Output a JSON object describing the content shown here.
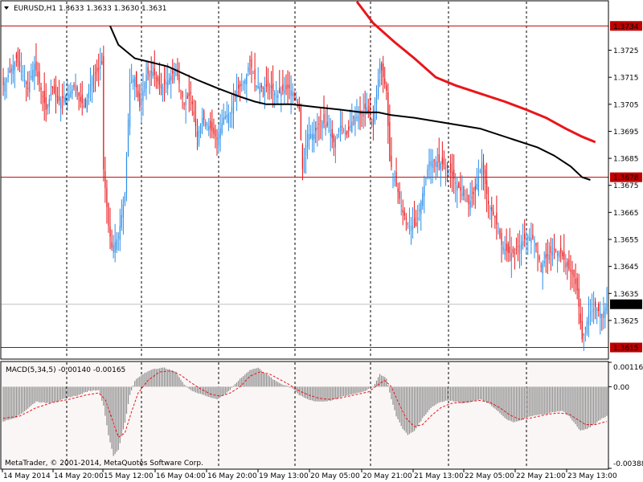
{
  "window": {
    "symbol_header": "EURUSD,H1  1.3633 1.3633 1.3630 1.3631",
    "copyright": "MetaTrader, © 2001-2014, MetaQuotes Software Corp."
  },
  "colors": {
    "background": "#ffffff",
    "grid": "#000000",
    "bull": "#2b8ee8",
    "bear": "#e8161a",
    "ma_slow": "#e8161a",
    "ma_fast": "#000000",
    "level_line": "#c00000",
    "macd_hist": "#8c8c8c",
    "macd_signal": "#e8161a",
    "panel_bg": "#fbf6f6"
  },
  "chart_data": [
    {
      "type": "candlestick",
      "symbol": "EURUSD",
      "timeframe": "H1",
      "ohlc_current": {
        "open": 1.3633,
        "high": 1.3633,
        "low": 1.363,
        "close": 1.3631
      },
      "ylim": [
        1.3611,
        1.3743
      ],
      "y_ticks": [
        "1.3725",
        "1.3715",
        "1.3705",
        "1.3695",
        "1.3685",
        "1.3675",
        "1.3665",
        "1.3655",
        "1.3645",
        "1.3635",
        "1.3625"
      ],
      "y_tick_values": [
        1.3725,
        1.3715,
        1.3705,
        1.3695,
        1.3685,
        1.3675,
        1.3665,
        1.3655,
        1.3645,
        1.3635,
        1.3625
      ],
      "x_tick_labels": [
        "14 May 2014",
        "14 May 20:00",
        "15 May 12:00",
        "16 May 04:00",
        "16 May 20:00",
        "19 May 13:00",
        "20 May 05:00",
        "20 May 21:00",
        "21 May 13:00",
        "22 May 05:00",
        "22 May 21:00",
        "23 May 13:00"
      ],
      "levels": [
        {
          "value": 1.3734,
          "label": "1.3734"
        },
        {
          "value": 1.3678,
          "label": "1.3678"
        },
        {
          "value": 1.3615,
          "label": "1.3615"
        }
      ],
      "current_price": {
        "value": 1.3631,
        "label": "1.3631"
      },
      "close_path": [
        [
          0,
          1.3712
        ],
        [
          8,
          1.3722
        ],
        [
          15,
          1.3711
        ],
        [
          19,
          1.372
        ],
        [
          26,
          1.3703
        ],
        [
          30,
          1.3711
        ],
        [
          33,
          1.3706
        ],
        [
          40,
          1.3709
        ],
        [
          44,
          1.3712
        ],
        [
          47,
          1.3706
        ],
        [
          50,
          1.3704
        ],
        [
          54,
          1.3715
        ],
        [
          57,
          1.3717
        ],
        [
          60,
          1.372
        ],
        [
          61,
          1.3681
        ],
        [
          64,
          1.366
        ],
        [
          66,
          1.3652
        ],
        [
          70,
          1.3656
        ],
        [
          74,
          1.3672
        ],
        [
          77,
          1.3713
        ],
        [
          80,
          1.3715
        ],
        [
          83,
          1.3704
        ],
        [
          87,
          1.3716
        ],
        [
          91,
          1.3717
        ],
        [
          96,
          1.3711
        ],
        [
          100,
          1.3714
        ],
        [
          105,
          1.3718
        ],
        [
          110,
          1.3705
        ],
        [
          114,
          1.3709
        ],
        [
          118,
          1.3693
        ],
        [
          121,
          1.37
        ],
        [
          125,
          1.3697
        ],
        [
          130,
          1.3692
        ],
        [
          134,
          1.37
        ],
        [
          138,
          1.3702
        ],
        [
          142,
          1.371
        ],
        [
          147,
          1.3714
        ],
        [
          150,
          1.3721
        ],
        [
          154,
          1.3712
        ],
        [
          158,
          1.3711
        ],
        [
          162,
          1.3712
        ],
        [
          166,
          1.3708
        ],
        [
          170,
          1.371
        ],
        [
          174,
          1.3711
        ],
        [
          178,
          1.3708
        ],
        [
          180,
          1.3703
        ],
        [
          182,
          1.3681
        ],
        [
          185,
          1.3694
        ],
        [
          189,
          1.3694
        ],
        [
          193,
          1.3699
        ],
        [
          197,
          1.3697
        ],
        [
          201,
          1.3691
        ],
        [
          205,
          1.3697
        ],
        [
          209,
          1.3694
        ],
        [
          213,
          1.37
        ],
        [
          217,
          1.3701
        ],
        [
          221,
          1.3704
        ],
        [
          225,
          1.3697
        ],
        [
          229,
          1.372
        ],
        [
          233,
          1.371
        ],
        [
          235,
          1.3684
        ],
        [
          239,
          1.3675
        ],
        [
          243,
          1.3665
        ],
        [
          247,
          1.366
        ],
        [
          251,
          1.366
        ],
        [
          255,
          1.3672
        ],
        [
          259,
          1.3684
        ],
        [
          263,
          1.3684
        ],
        [
          267,
          1.3683
        ],
        [
          271,
          1.3681
        ],
        [
          275,
          1.3676
        ],
        [
          279,
          1.3672
        ],
        [
          283,
          1.3668
        ],
        [
          287,
          1.3673
        ],
        [
          291,
          1.3683
        ],
        [
          295,
          1.3668
        ],
        [
          299,
          1.3663
        ],
        [
          303,
          1.3653
        ],
        [
          307,
          1.365
        ],
        [
          311,
          1.365
        ],
        [
          315,
          1.3654
        ],
        [
          319,
          1.3656
        ],
        [
          323,
          1.3655
        ],
        [
          327,
          1.3645
        ],
        [
          331,
          1.3649
        ],
        [
          335,
          1.3651
        ],
        [
          339,
          1.365
        ],
        [
          343,
          1.3645
        ],
        [
          347,
          1.3641
        ],
        [
          349,
          1.3636
        ],
        [
          352,
          1.3618
        ],
        [
          356,
          1.3627
        ],
        [
          360,
          1.363
        ],
        [
          364,
          1.3627
        ],
        [
          367,
          1.3631
        ]
      ],
      "ma_fast": [
        [
          65,
          1.3734
        ],
        [
          70,
          1.3727
        ],
        [
          80,
          1.3722
        ],
        [
          100,
          1.3719
        ],
        [
          118,
          1.3714
        ],
        [
          130,
          1.3711
        ],
        [
          143,
          1.3708
        ],
        [
          153,
          1.3706
        ],
        [
          160,
          1.3705
        ],
        [
          175,
          1.3705
        ],
        [
          190,
          1.3704
        ],
        [
          205,
          1.3703
        ],
        [
          218,
          1.3702
        ],
        [
          228,
          1.3702
        ],
        [
          236,
          1.3701
        ],
        [
          250,
          1.37
        ],
        [
          270,
          1.3698
        ],
        [
          290,
          1.3696
        ],
        [
          310,
          1.3692
        ],
        [
          325,
          1.3689
        ],
        [
          335,
          1.3686
        ],
        [
          345,
          1.3682
        ],
        [
          352,
          1.3678
        ],
        [
          357,
          1.3677
        ]
      ],
      "ma_slow": [
        [
          215,
          1.3743
        ],
        [
          225,
          1.3735
        ],
        [
          238,
          1.3728
        ],
        [
          250,
          1.3722
        ],
        [
          263,
          1.3715
        ],
        [
          275,
          1.3712
        ],
        [
          290,
          1.3709
        ],
        [
          305,
          1.3706
        ],
        [
          318,
          1.3703
        ],
        [
          330,
          1.37
        ],
        [
          342,
          1.3696
        ],
        [
          352,
          1.3693
        ],
        [
          360,
          1.3691
        ]
      ]
    },
    {
      "type": "histogram",
      "title": "MACD(5,34,5) -0.00140 -0.00165",
      "ylim": [
        -0.00388,
        0.00116
      ],
      "y_ticks": [
        "0.00116",
        "0.00",
        "-0.00388"
      ],
      "y_tick_values": [
        0.00116,
        0.0,
        -0.00388
      ],
      "x_count": 368,
      "macd_path": [
        [
          0,
          -0.00165
        ],
        [
          8,
          -0.00145
        ],
        [
          14,
          -0.0011
        ],
        [
          20,
          -0.0007
        ],
        [
          26,
          -0.00078
        ],
        [
          33,
          -0.0007
        ],
        [
          40,
          -0.0005
        ],
        [
          46,
          -0.0004
        ],
        [
          52,
          -0.0002
        ],
        [
          58,
          -0.00015
        ],
        [
          61,
          -0.0009
        ],
        [
          64,
          -0.0023
        ],
        [
          67,
          -0.0033
        ],
        [
          70,
          -0.003
        ],
        [
          74,
          -0.0017
        ],
        [
          77,
          -0.0004
        ],
        [
          80,
          0.0003
        ],
        [
          85,
          0.0006
        ],
        [
          91,
          0.00085
        ],
        [
          98,
          0.0009
        ],
        [
          105,
          0.0007
        ],
        [
          110,
          0.0001
        ],
        [
          115,
          -0.0002
        ],
        [
          120,
          -0.00035
        ],
        [
          126,
          -0.0005
        ],
        [
          130,
          -0.0006
        ],
        [
          134,
          -0.0004
        ],
        [
          138,
          -0.00015
        ],
        [
          143,
          0.0003
        ],
        [
          150,
          0.0008
        ],
        [
          155,
          0.0009
        ],
        [
          160,
          0.0006
        ],
        [
          165,
          0.0003
        ],
        [
          170,
          0.0001
        ],
        [
          175,
          0.0
        ],
        [
          180,
          -0.0004
        ],
        [
          185,
          -0.0006
        ],
        [
          190,
          -0.0007
        ],
        [
          195,
          -0.0007
        ],
        [
          200,
          -0.00065
        ],
        [
          205,
          -0.0005
        ],
        [
          210,
          -0.0004
        ],
        [
          215,
          -0.0003
        ],
        [
          220,
          -0.0002
        ],
        [
          225,
          0.0
        ],
        [
          229,
          0.0006
        ],
        [
          233,
          0.0004
        ],
        [
          236,
          -0.0006
        ],
        [
          239,
          -0.0014
        ],
        [
          243,
          -0.002
        ],
        [
          246,
          -0.0023
        ],
        [
          250,
          -0.0021
        ],
        [
          255,
          -0.0015
        ],
        [
          260,
          -0.001
        ],
        [
          265,
          -0.00075
        ],
        [
          270,
          -0.00065
        ],
        [
          275,
          -0.0007
        ],
        [
          280,
          -0.0008
        ],
        [
          285,
          -0.0007
        ],
        [
          290,
          -0.0006
        ],
        [
          295,
          -0.0008
        ],
        [
          300,
          -0.0011
        ],
        [
          305,
          -0.0015
        ],
        [
          310,
          -0.0017
        ],
        [
          315,
          -0.0016
        ],
        [
          320,
          -0.0014
        ],
        [
          325,
          -0.00135
        ],
        [
          330,
          -0.0013
        ],
        [
          335,
          -0.0012
        ],
        [
          340,
          -0.00115
        ],
        [
          344,
          -0.0014
        ],
        [
          348,
          -0.0018
        ],
        [
          351,
          -0.0021
        ],
        [
          355,
          -0.002
        ],
        [
          360,
          -0.00175
        ],
        [
          364,
          -0.0015
        ],
        [
          367,
          -0.0014
        ]
      ],
      "signal_path": [
        [
          0,
          -0.0015
        ],
        [
          10,
          -0.0014
        ],
        [
          20,
          -0.001
        ],
        [
          30,
          -0.00075
        ],
        [
          40,
          -0.0006
        ],
        [
          50,
          -0.0004
        ],
        [
          58,
          -0.0003
        ],
        [
          62,
          -0.0006
        ],
        [
          66,
          -0.0015
        ],
        [
          70,
          -0.0024
        ],
        [
          74,
          -0.0022
        ],
        [
          78,
          -0.0012
        ],
        [
          82,
          -0.0003
        ],
        [
          88,
          0.0003
        ],
        [
          95,
          0.0007
        ],
        [
          102,
          0.00075
        ],
        [
          108,
          0.00055
        ],
        [
          114,
          0.0002
        ],
        [
          120,
          -0.0001
        ],
        [
          126,
          -0.00035
        ],
        [
          132,
          -0.00045
        ],
        [
          138,
          -0.0003
        ],
        [
          144,
          0.0
        ],
        [
          150,
          0.0005
        ],
        [
          156,
          0.0007
        ],
        [
          162,
          0.0006
        ],
        [
          168,
          0.00035
        ],
        [
          174,
          0.0001
        ],
        [
          180,
          -0.0002
        ],
        [
          186,
          -0.0004
        ],
        [
          192,
          -0.00055
        ],
        [
          198,
          -0.0006
        ],
        [
          204,
          -0.00055
        ],
        [
          210,
          -0.00045
        ],
        [
          216,
          -0.00035
        ],
        [
          222,
          -0.00025
        ],
        [
          228,
          0.0001
        ],
        [
          232,
          0.0003
        ],
        [
          236,
          0.0
        ],
        [
          240,
          -0.0007
        ],
        [
          245,
          -0.0015
        ],
        [
          250,
          -0.0019
        ],
        [
          255,
          -0.0018
        ],
        [
          260,
          -0.0014
        ],
        [
          266,
          -0.001
        ],
        [
          272,
          -0.0008
        ],
        [
          278,
          -0.00075
        ],
        [
          284,
          -0.0007
        ],
        [
          290,
          -0.00065
        ],
        [
          296,
          -0.00075
        ],
        [
          302,
          -0.001
        ],
        [
          308,
          -0.00135
        ],
        [
          314,
          -0.00155
        ],
        [
          320,
          -0.0015
        ],
        [
          326,
          -0.0014
        ],
        [
          332,
          -0.0013
        ],
        [
          338,
          -0.00125
        ],
        [
          344,
          -0.0013
        ],
        [
          349,
          -0.00155
        ],
        [
          354,
          -0.0018
        ],
        [
          360,
          -0.0018
        ],
        [
          367,
          -0.00165
        ]
      ]
    }
  ]
}
